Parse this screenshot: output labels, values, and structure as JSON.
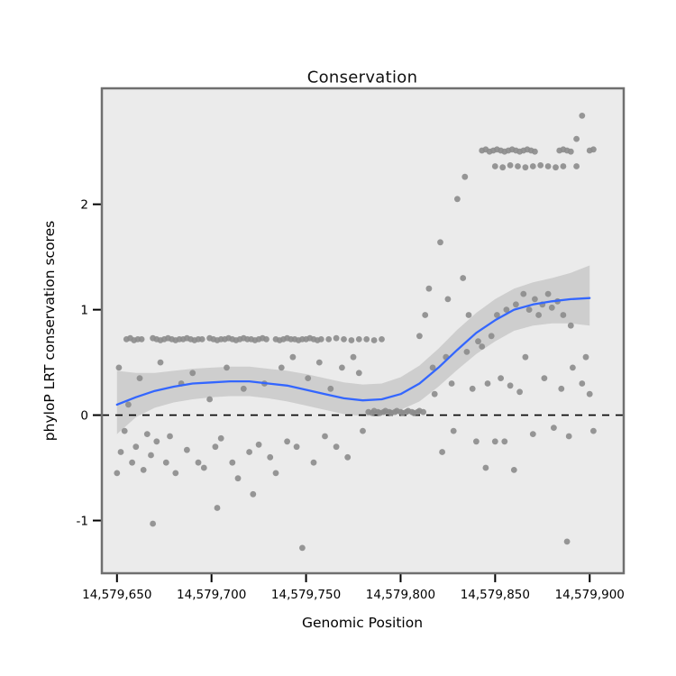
{
  "chart_data": {
    "type": "scatter",
    "title": "Conservation",
    "xlabel": "Genomic Position",
    "ylabel": "phyloP LRT conservation scores",
    "xlim": [
      14579642,
      14579918
    ],
    "ylim": [
      -1.5,
      3.1
    ],
    "grid": false,
    "legend": "none",
    "panel_bg": "#EBEBEB",
    "panel_border": "#6F6F6F",
    "point_color": "#8C8C8C",
    "smooth_color": "#3366FF",
    "ribbon_color": "#999999",
    "ribbon_opacity": 0.35,
    "tick_color": "#000000",
    "reference_line": {
      "y": 0,
      "style": "dashed",
      "color": "#000000"
    },
    "x_ticks": [
      {
        "value": 14579650,
        "label": "14,579,650"
      },
      {
        "value": 14579700,
        "label": "14,579,700"
      },
      {
        "value": 14579750,
        "label": "14,579,750"
      },
      {
        "value": 14579800,
        "label": "14,579,800"
      },
      {
        "value": 14579850,
        "label": "14,579,850"
      },
      {
        "value": 14579900,
        "label": "14,579,900"
      }
    ],
    "y_ticks": [
      {
        "value": -1,
        "label": "-1"
      },
      {
        "value": 0,
        "label": "0"
      },
      {
        "value": 1,
        "label": "1"
      },
      {
        "value": 2,
        "label": "2"
      }
    ],
    "points": [
      [
        14579655,
        0.72
      ],
      [
        14579657,
        0.73
      ],
      [
        14579659,
        0.71
      ],
      [
        14579661,
        0.72
      ],
      [
        14579663,
        0.72
      ],
      [
        14579669,
        0.73
      ],
      [
        14579671,
        0.72
      ],
      [
        14579673,
        0.71
      ],
      [
        14579675,
        0.72
      ],
      [
        14579677,
        0.73
      ],
      [
        14579679,
        0.72
      ],
      [
        14579681,
        0.71
      ],
      [
        14579683,
        0.72
      ],
      [
        14579685,
        0.72
      ],
      [
        14579687,
        0.73
      ],
      [
        14579689,
        0.72
      ],
      [
        14579691,
        0.71
      ],
      [
        14579693,
        0.72
      ],
      [
        14579695,
        0.72
      ],
      [
        14579699,
        0.73
      ],
      [
        14579701,
        0.72
      ],
      [
        14579703,
        0.71
      ],
      [
        14579705,
        0.72
      ],
      [
        14579707,
        0.72
      ],
      [
        14579709,
        0.73
      ],
      [
        14579711,
        0.72
      ],
      [
        14579713,
        0.71
      ],
      [
        14579715,
        0.72
      ],
      [
        14579717,
        0.73
      ],
      [
        14579719,
        0.72
      ],
      [
        14579721,
        0.72
      ],
      [
        14579723,
        0.71
      ],
      [
        14579725,
        0.72
      ],
      [
        14579727,
        0.73
      ],
      [
        14579729,
        0.72
      ],
      [
        14579734,
        0.72
      ],
      [
        14579736,
        0.71
      ],
      [
        14579738,
        0.72
      ],
      [
        14579740,
        0.73
      ],
      [
        14579742,
        0.72
      ],
      [
        14579744,
        0.72
      ],
      [
        14579746,
        0.71
      ],
      [
        14579748,
        0.72
      ],
      [
        14579750,
        0.72
      ],
      [
        14579752,
        0.73
      ],
      [
        14579754,
        0.72
      ],
      [
        14579756,
        0.71
      ],
      [
        14579758,
        0.72
      ],
      [
        14579762,
        0.72
      ],
      [
        14579766,
        0.73
      ],
      [
        14579770,
        0.72
      ],
      [
        14579774,
        0.71
      ],
      [
        14579778,
        0.72
      ],
      [
        14579782,
        0.72
      ],
      [
        14579786,
        0.71
      ],
      [
        14579790,
        0.72
      ],
      [
        14579783,
        0.03
      ],
      [
        14579785,
        0.02
      ],
      [
        14579786,
        0.04
      ],
      [
        14579788,
        0.03
      ],
      [
        14579789,
        0.02
      ],
      [
        14579791,
        0.03
      ],
      [
        14579792,
        0.04
      ],
      [
        14579794,
        0.03
      ],
      [
        14579795,
        0.02
      ],
      [
        14579797,
        0.03
      ],
      [
        14579798,
        0.04
      ],
      [
        14579800,
        0.03
      ],
      [
        14579801,
        0.02
      ],
      [
        14579803,
        0.03
      ],
      [
        14579804,
        0.04
      ],
      [
        14579806,
        0.03
      ],
      [
        14579807,
        0.02
      ],
      [
        14579809,
        0.03
      ],
      [
        14579810,
        0.04
      ],
      [
        14579812,
        0.03
      ],
      [
        14579843,
        2.51
      ],
      [
        14579845,
        2.52
      ],
      [
        14579847,
        2.5
      ],
      [
        14579849,
        2.51
      ],
      [
        14579851,
        2.52
      ],
      [
        14579853,
        2.51
      ],
      [
        14579855,
        2.5
      ],
      [
        14579857,
        2.51
      ],
      [
        14579859,
        2.52
      ],
      [
        14579861,
        2.51
      ],
      [
        14579863,
        2.5
      ],
      [
        14579865,
        2.51
      ],
      [
        14579867,
        2.52
      ],
      [
        14579869,
        2.51
      ],
      [
        14579871,
        2.5
      ],
      [
        14579884,
        2.51
      ],
      [
        14579886,
        2.52
      ],
      [
        14579888,
        2.51
      ],
      [
        14579890,
        2.5
      ],
      [
        14579900,
        2.51
      ],
      [
        14579902,
        2.52
      ],
      [
        14579850,
        2.36
      ],
      [
        14579854,
        2.35
      ],
      [
        14579858,
        2.37
      ],
      [
        14579862,
        2.36
      ],
      [
        14579866,
        2.35
      ],
      [
        14579870,
        2.36
      ],
      [
        14579874,
        2.37
      ],
      [
        14579878,
        2.36
      ],
      [
        14579882,
        2.35
      ],
      [
        14579886,
        2.36
      ],
      [
        14579893,
        2.36
      ],
      [
        14579896,
        2.84
      ],
      [
        14579893,
        2.62
      ],
      [
        14579834,
        2.26
      ],
      [
        14579830,
        2.05
      ],
      [
        14579821,
        1.64
      ],
      [
        14579650,
        -0.55
      ],
      [
        14579651,
        0.45
      ],
      [
        14579652,
        -0.35
      ],
      [
        14579654,
        -0.15
      ],
      [
        14579656,
        0.1
      ],
      [
        14579658,
        -0.45
      ],
      [
        14579660,
        -0.3
      ],
      [
        14579662,
        0.35
      ],
      [
        14579664,
        -0.52
      ],
      [
        14579666,
        -0.18
      ],
      [
        14579668,
        -0.38
      ],
      [
        14579669,
        -1.03
      ],
      [
        14579671,
        -0.25
      ],
      [
        14579673,
        0.5
      ],
      [
        14579676,
        -0.45
      ],
      [
        14579678,
        -0.2
      ],
      [
        14579681,
        -0.55
      ],
      [
        14579684,
        0.3
      ],
      [
        14579687,
        -0.33
      ],
      [
        14579690,
        0.4
      ],
      [
        14579693,
        -0.45
      ],
      [
        14579696,
        -0.5
      ],
      [
        14579699,
        0.15
      ],
      [
        14579702,
        -0.3
      ],
      [
        14579703,
        -0.88
      ],
      [
        14579705,
        -0.22
      ],
      [
        14579708,
        0.45
      ],
      [
        14579711,
        -0.45
      ],
      [
        14579714,
        -0.6
      ],
      [
        14579717,
        0.25
      ],
      [
        14579720,
        -0.35
      ],
      [
        14579722,
        -0.75
      ],
      [
        14579725,
        -0.28
      ],
      [
        14579728,
        0.3
      ],
      [
        14579731,
        -0.4
      ],
      [
        14579734,
        -0.55
      ],
      [
        14579737,
        0.45
      ],
      [
        14579740,
        -0.25
      ],
      [
        14579743,
        0.55
      ],
      [
        14579745,
        -0.3
      ],
      [
        14579748,
        -1.26
      ],
      [
        14579751,
        0.35
      ],
      [
        14579754,
        -0.45
      ],
      [
        14579757,
        0.5
      ],
      [
        14579760,
        -0.2
      ],
      [
        14579763,
        0.25
      ],
      [
        14579766,
        -0.3
      ],
      [
        14579769,
        0.45
      ],
      [
        14579772,
        -0.4
      ],
      [
        14579775,
        0.55
      ],
      [
        14579778,
        0.4
      ],
      [
        14579780,
        -0.15
      ],
      [
        14579810,
        0.75
      ],
      [
        14579813,
        0.95
      ],
      [
        14579815,
        1.2
      ],
      [
        14579817,
        0.45
      ],
      [
        14579818,
        0.2
      ],
      [
        14579822,
        -0.35
      ],
      [
        14579824,
        0.55
      ],
      [
        14579825,
        1.1
      ],
      [
        14579827,
        0.3
      ],
      [
        14579828,
        -0.15
      ],
      [
        14579833,
        1.3
      ],
      [
        14579835,
        0.6
      ],
      [
        14579836,
        0.95
      ],
      [
        14579838,
        0.25
      ],
      [
        14579840,
        -0.25
      ],
      [
        14579841,
        0.7
      ],
      [
        14579843,
        0.65
      ],
      [
        14579845,
        -0.5
      ],
      [
        14579846,
        0.3
      ],
      [
        14579848,
        0.75
      ],
      [
        14579850,
        -0.25
      ],
      [
        14579851,
        0.95
      ],
      [
        14579853,
        0.35
      ],
      [
        14579855,
        -0.25
      ],
      [
        14579856,
        1.0
      ],
      [
        14579858,
        0.28
      ],
      [
        14579860,
        -0.52
      ],
      [
        14579861,
        1.05
      ],
      [
        14579863,
        0.22
      ],
      [
        14579865,
        1.15
      ],
      [
        14579866,
        0.55
      ],
      [
        14579868,
        1.0
      ],
      [
        14579870,
        -0.18
      ],
      [
        14579871,
        1.1
      ],
      [
        14579873,
        0.95
      ],
      [
        14579875,
        1.05
      ],
      [
        14579876,
        0.35
      ],
      [
        14579878,
        1.15
      ],
      [
        14579880,
        1.02
      ],
      [
        14579881,
        -0.12
      ],
      [
        14579883,
        1.08
      ],
      [
        14579885,
        0.25
      ],
      [
        14579886,
        0.95
      ],
      [
        14579888,
        -1.2
      ],
      [
        14579890,
        0.85
      ],
      [
        14579891,
        0.45
      ],
      [
        14579896,
        0.3
      ],
      [
        14579898,
        0.55
      ],
      [
        14579900,
        0.2
      ],
      [
        14579902,
        -0.15
      ],
      [
        14579889,
        -0.2
      ]
    ],
    "smooth": {
      "x": [
        14579650,
        14579660,
        14579670,
        14579680,
        14579690,
        14579700,
        14579710,
        14579720,
        14579730,
        14579740,
        14579750,
        14579760,
        14579770,
        14579780,
        14579790,
        14579800,
        14579810,
        14579820,
        14579830,
        14579840,
        14579850,
        14579860,
        14579870,
        14579880,
        14579890,
        14579900
      ],
      "y": [
        0.1,
        0.17,
        0.23,
        0.27,
        0.3,
        0.31,
        0.32,
        0.32,
        0.3,
        0.28,
        0.24,
        0.2,
        0.16,
        0.14,
        0.15,
        0.2,
        0.3,
        0.45,
        0.62,
        0.78,
        0.9,
        1.0,
        1.05,
        1.08,
        1.1,
        1.11
      ],
      "lower": [
        -0.18,
        -0.02,
        0.07,
        0.12,
        0.15,
        0.17,
        0.18,
        0.18,
        0.16,
        0.13,
        0.09,
        0.05,
        0.01,
        -0.01,
        0.0,
        0.05,
        0.13,
        0.27,
        0.43,
        0.58,
        0.7,
        0.8,
        0.85,
        0.87,
        0.87,
        0.85
      ],
      "upper": [
        0.42,
        0.4,
        0.4,
        0.42,
        0.44,
        0.45,
        0.46,
        0.46,
        0.44,
        0.42,
        0.39,
        0.35,
        0.31,
        0.29,
        0.3,
        0.36,
        0.47,
        0.63,
        0.81,
        0.97,
        1.1,
        1.2,
        1.26,
        1.3,
        1.35,
        1.42
      ]
    }
  }
}
